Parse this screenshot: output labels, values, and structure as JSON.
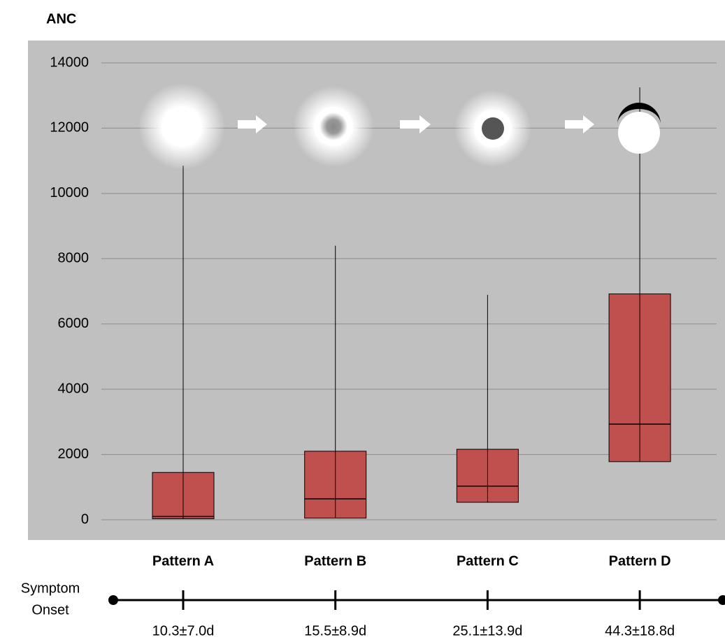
{
  "chart_data": {
    "type": "box",
    "y_label": "ANC",
    "categories": [
      "Pattern A",
      "Pattern B",
      "Pattern C",
      "Pattern D"
    ],
    "q1": [
      30,
      50,
      535,
      1780
    ],
    "median": [
      100,
      640,
      1030,
      2930
    ],
    "q3": [
      1450,
      2100,
      2160,
      6920
    ],
    "max": [
      10850,
      8400,
      6890,
      13250
    ],
    "color": "#c0504d",
    "ylim": [
      0,
      14000
    ],
    "yticks": [
      0,
      2000,
      4000,
      6000,
      8000,
      10000,
      12000,
      14000
    ],
    "grid": true
  },
  "timeline": {
    "label": [
      "Symptom",
      "Onset"
    ],
    "labels": [
      "10.3±7.0d",
      "15.5±8.9d",
      "25.1±13.9d",
      "44.3±18.8d"
    ]
  }
}
